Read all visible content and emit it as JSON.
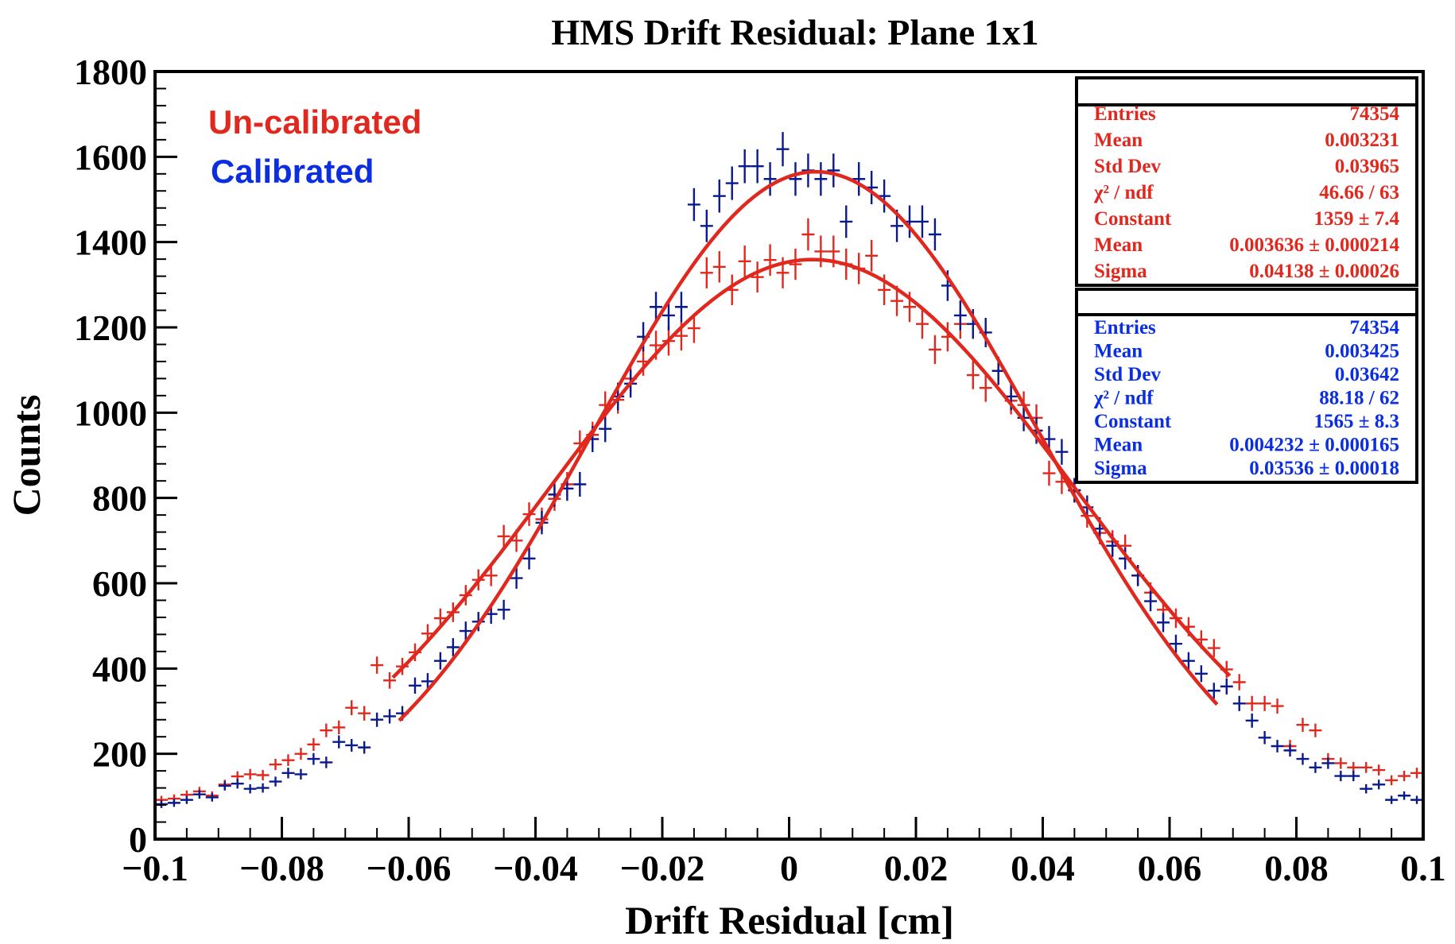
{
  "chart_data": {
    "type": "scatter",
    "title": "HMS Drift Residual: Plane 1x1",
    "xlabel": "Drift Residual [cm]",
    "ylabel": "Counts",
    "xlim": [
      -0.1,
      0.1
    ],
    "ylim": [
      0,
      1800
    ],
    "x_ticks": [
      -0.1,
      -0.08,
      -0.06,
      -0.04,
      -0.02,
      0,
      0.02,
      0.04,
      0.06,
      0.08,
      0.1
    ],
    "x_tick_labels": [
      "−0.1",
      "−0.08",
      "−0.06",
      "−0.04",
      "−0.02",
      "0",
      "0.02",
      "0.04",
      "0.06",
      "0.08",
      "0.1"
    ],
    "y_ticks": [
      0,
      200,
      400,
      600,
      800,
      1000,
      1200,
      1400,
      1600,
      1800
    ],
    "y_tick_labels": [
      "0",
      "200",
      "400",
      "600",
      "800",
      "1000",
      "1200",
      "1400",
      "1600",
      "1800"
    ],
    "legend": [
      {
        "label": "Un-calibrated",
        "color": "#e0281e"
      },
      {
        "label": "Calibrated",
        "color": "#0a2ee0"
      }
    ],
    "bin_width": 0.002,
    "series": [
      {
        "name": "Un-calibrated",
        "color": "#e0281e",
        "x": [
          -0.099,
          -0.097,
          -0.095,
          -0.093,
          -0.091,
          -0.089,
          -0.087,
          -0.085,
          -0.083,
          -0.081,
          -0.079,
          -0.077,
          -0.075,
          -0.073,
          -0.071,
          -0.069,
          -0.067,
          -0.065,
          -0.063,
          -0.061,
          -0.059,
          -0.057,
          -0.055,
          -0.053,
          -0.051,
          -0.049,
          -0.047,
          -0.045,
          -0.043,
          -0.041,
          -0.039,
          -0.037,
          -0.035,
          -0.033,
          -0.031,
          -0.029,
          -0.027,
          -0.025,
          -0.023,
          -0.021,
          -0.019,
          -0.017,
          -0.015,
          -0.013,
          -0.011,
          -0.009,
          -0.007,
          -0.005,
          -0.003,
          -0.001,
          0.001,
          0.003,
          0.005,
          0.007,
          0.009,
          0.011,
          0.013,
          0.015,
          0.017,
          0.019,
          0.021,
          0.023,
          0.025,
          0.027,
          0.029,
          0.031,
          0.033,
          0.035,
          0.037,
          0.039,
          0.041,
          0.043,
          0.045,
          0.047,
          0.049,
          0.051,
          0.053,
          0.055,
          0.057,
          0.059,
          0.061,
          0.063,
          0.065,
          0.067,
          0.069,
          0.071,
          0.073,
          0.075,
          0.077,
          0.079,
          0.081,
          0.083,
          0.085,
          0.087,
          0.089,
          0.091,
          0.093,
          0.095,
          0.097,
          0.099
        ],
        "values": [
          92,
          95,
          104,
          112,
          102,
          128,
          147,
          152,
          150,
          175,
          185,
          200,
          222,
          255,
          262,
          308,
          295,
          408,
          372,
          405,
          438,
          482,
          518,
          532,
          572,
          608,
          618,
          710,
          700,
          762,
          750,
          798,
          832,
          928,
          948,
          1018,
          1030,
          1080,
          1120,
          1158,
          1168,
          1180,
          1198,
          1328,
          1342,
          1288,
          1355,
          1318,
          1358,
          1328,
          1348,
          1418,
          1378,
          1378,
          1348,
          1338,
          1368,
          1288,
          1262,
          1248,
          1208,
          1148,
          1178,
          1208,
          1088,
          1058,
          1098,
          1028,
          1018,
          988,
          858,
          838,
          818,
          758,
          718,
          698,
          688,
          618,
          578,
          538,
          518,
          498,
          468,
          448,
          398,
          368,
          318,
          318,
          312,
          218,
          268,
          255,
          188,
          178,
          168,
          168,
          162,
          138,
          148,
          155
        ]
      },
      {
        "name": "Calibrated",
        "color": "#0a1a8c",
        "x": [
          -0.099,
          -0.097,
          -0.095,
          -0.093,
          -0.091,
          -0.089,
          -0.087,
          -0.085,
          -0.083,
          -0.081,
          -0.079,
          -0.077,
          -0.075,
          -0.073,
          -0.071,
          -0.069,
          -0.067,
          -0.065,
          -0.063,
          -0.061,
          -0.059,
          -0.057,
          -0.055,
          -0.053,
          -0.051,
          -0.049,
          -0.047,
          -0.045,
          -0.043,
          -0.041,
          -0.039,
          -0.037,
          -0.035,
          -0.033,
          -0.031,
          -0.029,
          -0.027,
          -0.025,
          -0.023,
          -0.021,
          -0.019,
          -0.017,
          -0.015,
          -0.013,
          -0.011,
          -0.009,
          -0.007,
          -0.005,
          -0.003,
          -0.001,
          0.001,
          0.003,
          0.005,
          0.007,
          0.009,
          0.011,
          0.013,
          0.015,
          0.017,
          0.019,
          0.021,
          0.023,
          0.025,
          0.027,
          0.029,
          0.031,
          0.033,
          0.035,
          0.037,
          0.039,
          0.041,
          0.043,
          0.045,
          0.047,
          0.049,
          0.051,
          0.053,
          0.055,
          0.057,
          0.059,
          0.061,
          0.063,
          0.065,
          0.067,
          0.069,
          0.071,
          0.073,
          0.075,
          0.077,
          0.079,
          0.081,
          0.083,
          0.085,
          0.087,
          0.089,
          0.091,
          0.093,
          0.095,
          0.097,
          0.099
        ],
        "values": [
          82,
          85,
          92,
          105,
          98,
          125,
          130,
          118,
          120,
          135,
          155,
          152,
          188,
          180,
          228,
          220,
          215,
          280,
          288,
          295,
          360,
          370,
          418,
          450,
          488,
          510,
          528,
          538,
          612,
          658,
          742,
          808,
          822,
          832,
          938,
          962,
          1038,
          1068,
          1178,
          1248,
          1228,
          1248,
          1488,
          1438,
          1508,
          1538,
          1578,
          1578,
          1548,
          1618,
          1548,
          1568,
          1548,
          1568,
          1448,
          1548,
          1528,
          1508,
          1438,
          1448,
          1448,
          1418,
          1298,
          1228,
          1208,
          1188,
          1098,
          1038,
          988,
          958,
          938,
          908,
          818,
          778,
          728,
          688,
          658,
          618,
          558,
          508,
          458,
          418,
          388,
          348,
          358,
          318,
          278,
          238,
          218,
          208,
          188,
          168,
          178,
          148,
          148,
          118,
          128,
          92,
          102,
          92
        ]
      }
    ],
    "fits": [
      {
        "name": "Un-calibrated fit",
        "color": "#e0281e",
        "constant": 1359,
        "mean": 0.003636,
        "sigma": 0.04138,
        "range": [
          -0.0625,
          0.0695
        ]
      },
      {
        "name": "Calibrated fit",
        "color": "#e0281e",
        "constant": 1565,
        "mean": 0.004232,
        "sigma": 0.03536,
        "range": [
          -0.0615,
          0.0675
        ]
      }
    ],
    "stat_boxes": [
      {
        "color": "#e0281e",
        "rows": [
          {
            "label": "Entries",
            "value": "74354"
          },
          {
            "label": "Mean",
            "value": "0.003231"
          },
          {
            "label": "Std Dev",
            "value": "0.03965"
          },
          {
            "label": "χ² / ndf",
            "value": "46.66 / 63"
          },
          {
            "label": "Constant",
            "value": "1359  ± 7.4"
          },
          {
            "label": "Mean",
            "value": "0.003636  ± 0.000214"
          },
          {
            "label": "Sigma",
            "value": "0.04138  ± 0.00026"
          }
        ]
      },
      {
        "color": "#0a2ee0",
        "rows": [
          {
            "label": "Entries",
            "value": "74354"
          },
          {
            "label": "Mean",
            "value": "0.003425"
          },
          {
            "label": "Std Dev",
            "value": "0.03642"
          },
          {
            "label": "χ² / ndf",
            "value": "88.18 / 62"
          },
          {
            "label": "Constant",
            "value": "1565  ± 8.3"
          },
          {
            "label": "Mean",
            "value": "0.004232  ± 0.000165"
          },
          {
            "label": "Sigma",
            "value": "0.03536  ± 0.00018"
          }
        ]
      }
    ]
  }
}
